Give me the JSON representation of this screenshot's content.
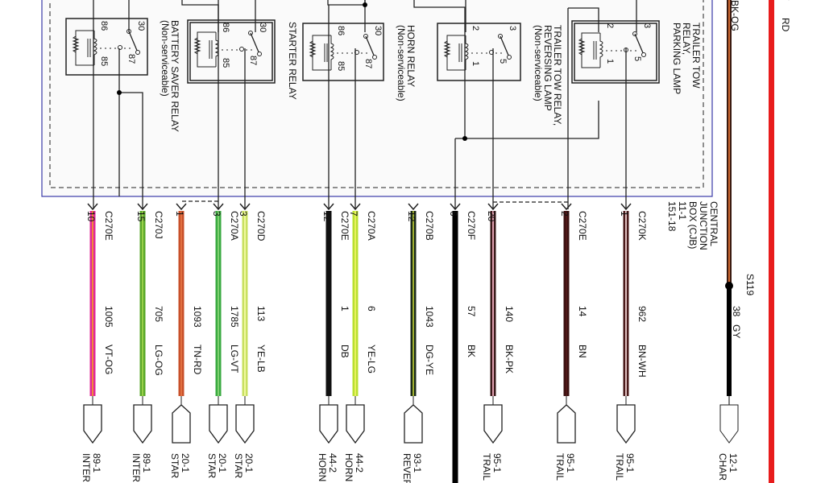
{
  "box": {
    "name_lines": [
      "CENTRAL",
      "JUNCTION",
      "BOX (CJB)",
      "11-1",
      "151-18"
    ],
    "border_color": "#3a3aa8"
  },
  "relays": [
    {
      "id": "battery-saver",
      "lines": [
        "BATTERY SAVER RELAY",
        "(Non-serviceable)"
      ],
      "pins": [
        "86",
        "85",
        "30",
        "87"
      ],
      "double": false
    },
    {
      "id": "starter",
      "lines": [
        "STARTER RELAY"
      ],
      "pins": [
        "86",
        "85",
        "30",
        "87"
      ],
      "double": true
    },
    {
      "id": "horn",
      "lines": [
        "HORN RELAY",
        "(Non-serviceable)"
      ],
      "pins": [
        "86",
        "85",
        "30",
        "87"
      ],
      "double": false
    },
    {
      "id": "trailer-tow-reversing",
      "lines": [
        "TRAILER TOW RELAY,",
        "REVERSING LAMP",
        "(Non-serviceable)"
      ],
      "pins": [
        "2",
        "1",
        "3",
        "5"
      ],
      "double": false
    },
    {
      "id": "trailer-tow-parking",
      "lines": [
        "TRAILER TOW",
        "RELAY,",
        "PARKING LAMP"
      ],
      "pins": [
        "2",
        "1",
        "3",
        "5"
      ],
      "double": true
    }
  ],
  "wires": [
    {
      "connector": "C270E",
      "pin": "10",
      "circuit": "1005",
      "color_code": "VT-OG",
      "main": "#e0269a",
      "stripe": "#f08a3a",
      "end": "male",
      "dest": [
        "89-1",
        "INTER"
      ]
    },
    {
      "connector": "C270J",
      "pin": "15",
      "circuit": "705",
      "color_code": "LG-OG",
      "main": "#5aa82a",
      "stripe": "#9ad04a",
      "end": "male",
      "dest": [
        "89-1",
        "INTER"
      ]
    },
    {
      "connector": "",
      "pin": "1",
      "circuit": "1093",
      "color_code": "TN-RD",
      "main": "#c8502a",
      "stripe": "#e07040",
      "end": "female",
      "dest": [
        "20-1",
        "STAR"
      ]
    },
    {
      "connector": "C270A",
      "pin": "3",
      "circuit": "1785",
      "color_code": "LG-VT",
      "main": "#3aaa40",
      "stripe": "#80d070",
      "end": "male",
      "dest": [
        "20-1",
        "STAR"
      ]
    },
    {
      "connector": "C270D",
      "pin": "3",
      "circuit": "113",
      "color_code": "YE-LB",
      "main": "#c8e060",
      "stripe": "#f0f8a0",
      "end": "male",
      "dest": [
        "20-1",
        "STAR"
      ]
    },
    {
      "connector": "C270E",
      "pin": "12",
      "circuit": "1",
      "color_code": "DB",
      "main": "#111111",
      "stripe": "#111111",
      "end": "male",
      "dest": [
        "44-2",
        "HORN"
      ]
    },
    {
      "connector": "C270A",
      "pin": "7",
      "circuit": "6",
      "color_code": "YE-LG",
      "main": "#b8e030",
      "stripe": "#e8f060",
      "end": "male",
      "dest": [
        "44-2",
        "HORN"
      ]
    },
    {
      "connector": "C270B",
      "pin": "12",
      "circuit": "1043",
      "color_code": "DG-YE",
      "main": "#1a2a1a",
      "stripe": "#a0b030",
      "end": "female",
      "dest": [
        "93-1",
        "REVER"
      ]
    },
    {
      "connector": "C270F",
      "pin": "6",
      "circuit": "57",
      "color_code": "BK",
      "main": "#000000",
      "stripe": "#000000",
      "end": "none",
      "dest": []
    },
    {
      "connector": "",
      "pin": "20",
      "circuit": "140",
      "color_code": "BK-PK",
      "main": "#3a1a1a",
      "stripe": "#e0a0b0",
      "end": "male",
      "dest": [
        "95-1",
        "TRAIL"
      ]
    },
    {
      "connector": "C270E",
      "pin": "2",
      "circuit": "14",
      "color_code": "BN",
      "main": "#3a1010",
      "stripe": "#501818",
      "end": "female",
      "dest": [
        "95-1",
        "TRAIL"
      ]
    },
    {
      "connector": "C270K",
      "pin": "1",
      "circuit": "962",
      "color_code": "BN-WH",
      "main": "#4a1a1a",
      "stripe": "#e0c0c0",
      "end": "male",
      "dest": [
        "95-1",
        "TRAIL"
      ]
    }
  ],
  "right_wires": {
    "top_label": "BK-OG",
    "splice": "S119",
    "circuit": "38",
    "color_code": "GY",
    "dest": [
      "12-1",
      "CHAR"
    ],
    "red_pin": "7",
    "red_label": "RD",
    "red_color": "#e81c1c"
  }
}
